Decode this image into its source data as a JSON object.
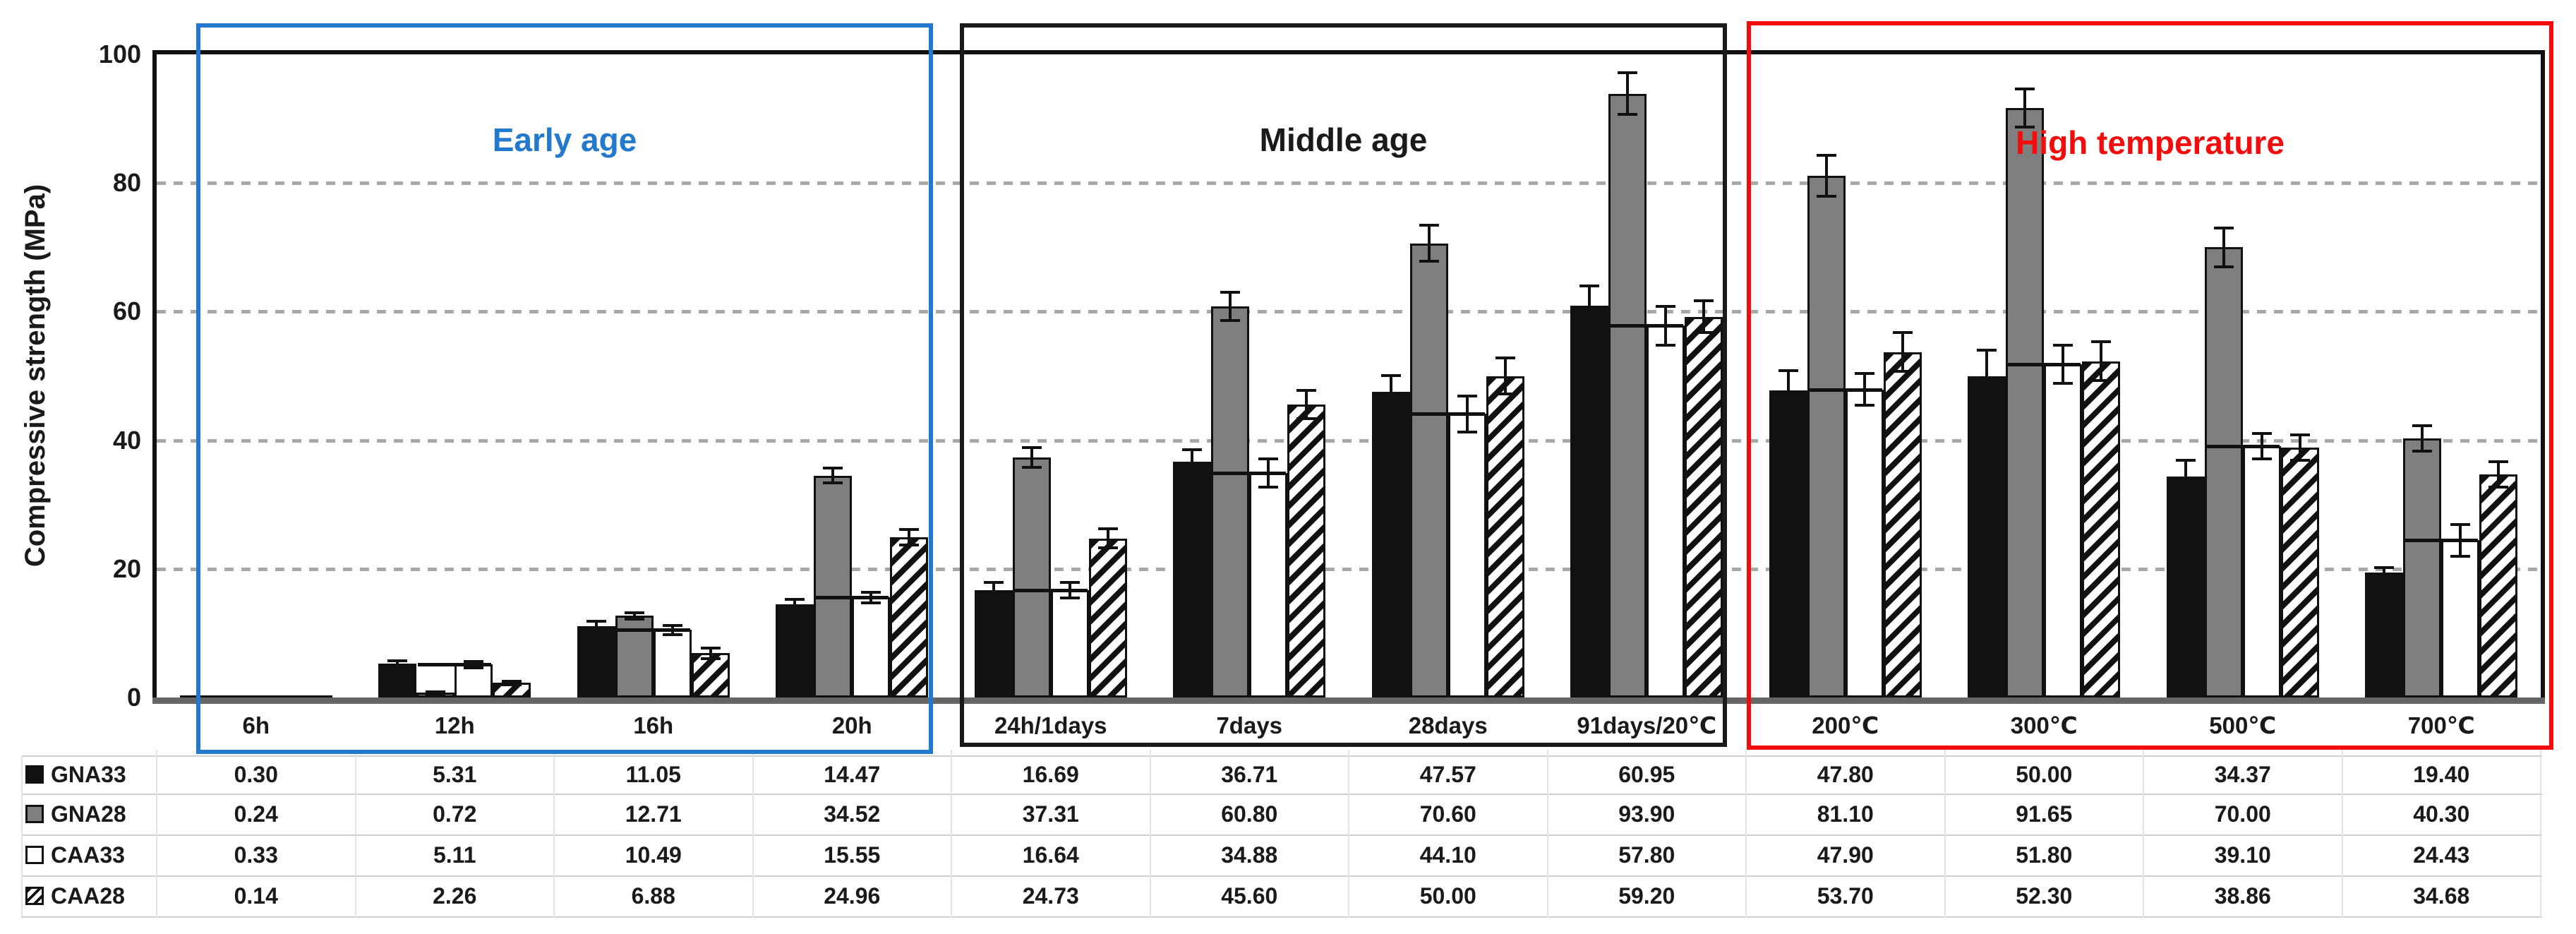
{
  "chart_data": {
    "type": "bar",
    "title": "",
    "ylabel": "Compressive strength (MPa)",
    "xlabel": "",
    "ylim": [
      0,
      100
    ],
    "yticks": [
      0,
      20,
      40,
      60,
      80,
      100
    ],
    "grid": "horizontal dashed lines at 20/40/60/80",
    "legend_position": "table left column",
    "categories": [
      "6h",
      "12h",
      "16h",
      "20h",
      "24h/1days",
      "7days",
      "28days",
      "91days/20℃",
      "200℃",
      "300℃",
      "500℃",
      "700℃"
    ],
    "series": [
      {
        "name": "GNA33",
        "style": "solid-black",
        "color": "#111111",
        "values": [
          0.3,
          5.31,
          11.05,
          14.47,
          16.69,
          36.71,
          47.57,
          60.95,
          47.8,
          50.0,
          34.37,
          19.4
        ],
        "errors": [
          0,
          0.4,
          0.8,
          0.8,
          1.2,
          1.8,
          2.5,
          3.0,
          3.0,
          4.0,
          2.5,
          0.8
        ],
        "wide_cap": false
      },
      {
        "name": "GNA28",
        "style": "solid-gray",
        "color": "#7f7f7f",
        "values": [
          0.24,
          0.72,
          12.71,
          34.52,
          37.31,
          60.8,
          70.6,
          93.9,
          81.1,
          91.65,
          70.0,
          40.3
        ],
        "errors": [
          0,
          0.2,
          0.5,
          1.2,
          1.5,
          2.2,
          2.8,
          3.2,
          3.2,
          3.0,
          3.0,
          2.0
        ],
        "wide_cap": false
      },
      {
        "name": "CAA33",
        "style": "open-white",
        "color": "#ffffff",
        "values": [
          0.33,
          5.11,
          10.49,
          15.55,
          16.64,
          34.88,
          44.1,
          57.8,
          47.9,
          51.8,
          39.1,
          24.43
        ],
        "errors": [
          0,
          0.5,
          0.7,
          0.8,
          1.2,
          2.2,
          2.8,
          3.0,
          2.5,
          3.0,
          2.0,
          2.5
        ],
        "wide_cap": true
      },
      {
        "name": "CAA28",
        "style": "diagonal-hatch",
        "color": "#111111",
        "values": [
          0.14,
          2.26,
          6.88,
          24.96,
          24.73,
          45.6,
          50.0,
          59.2,
          53.7,
          52.3,
          38.86,
          34.68
        ],
        "errors": [
          0,
          0.3,
          0.8,
          1.2,
          1.5,
          2.2,
          2.8,
          2.5,
          3.0,
          3.0,
          2.0,
          2.0
        ],
        "wide_cap": false
      }
    ],
    "regions": [
      {
        "label": "Early age",
        "color": "#2279cd",
        "from": "6h",
        "to": "20h"
      },
      {
        "label": "Middle age",
        "color": "#1a1a1a",
        "from": "24h/1days",
        "to": "91days/20℃"
      },
      {
        "label": "High temperature",
        "color": "#f40b0b",
        "from": "200℃",
        "to": "700℃"
      }
    ],
    "colors": {
      "grid": "#a8a8a8",
      "axis_frame": "#111111",
      "baseline": "#666666",
      "error_bar": "#111111"
    }
  },
  "table": {
    "row_headers": [
      "GNA33",
      "GNA28",
      "CAA33",
      "CAA28"
    ],
    "value_format": "2 decimals"
  }
}
